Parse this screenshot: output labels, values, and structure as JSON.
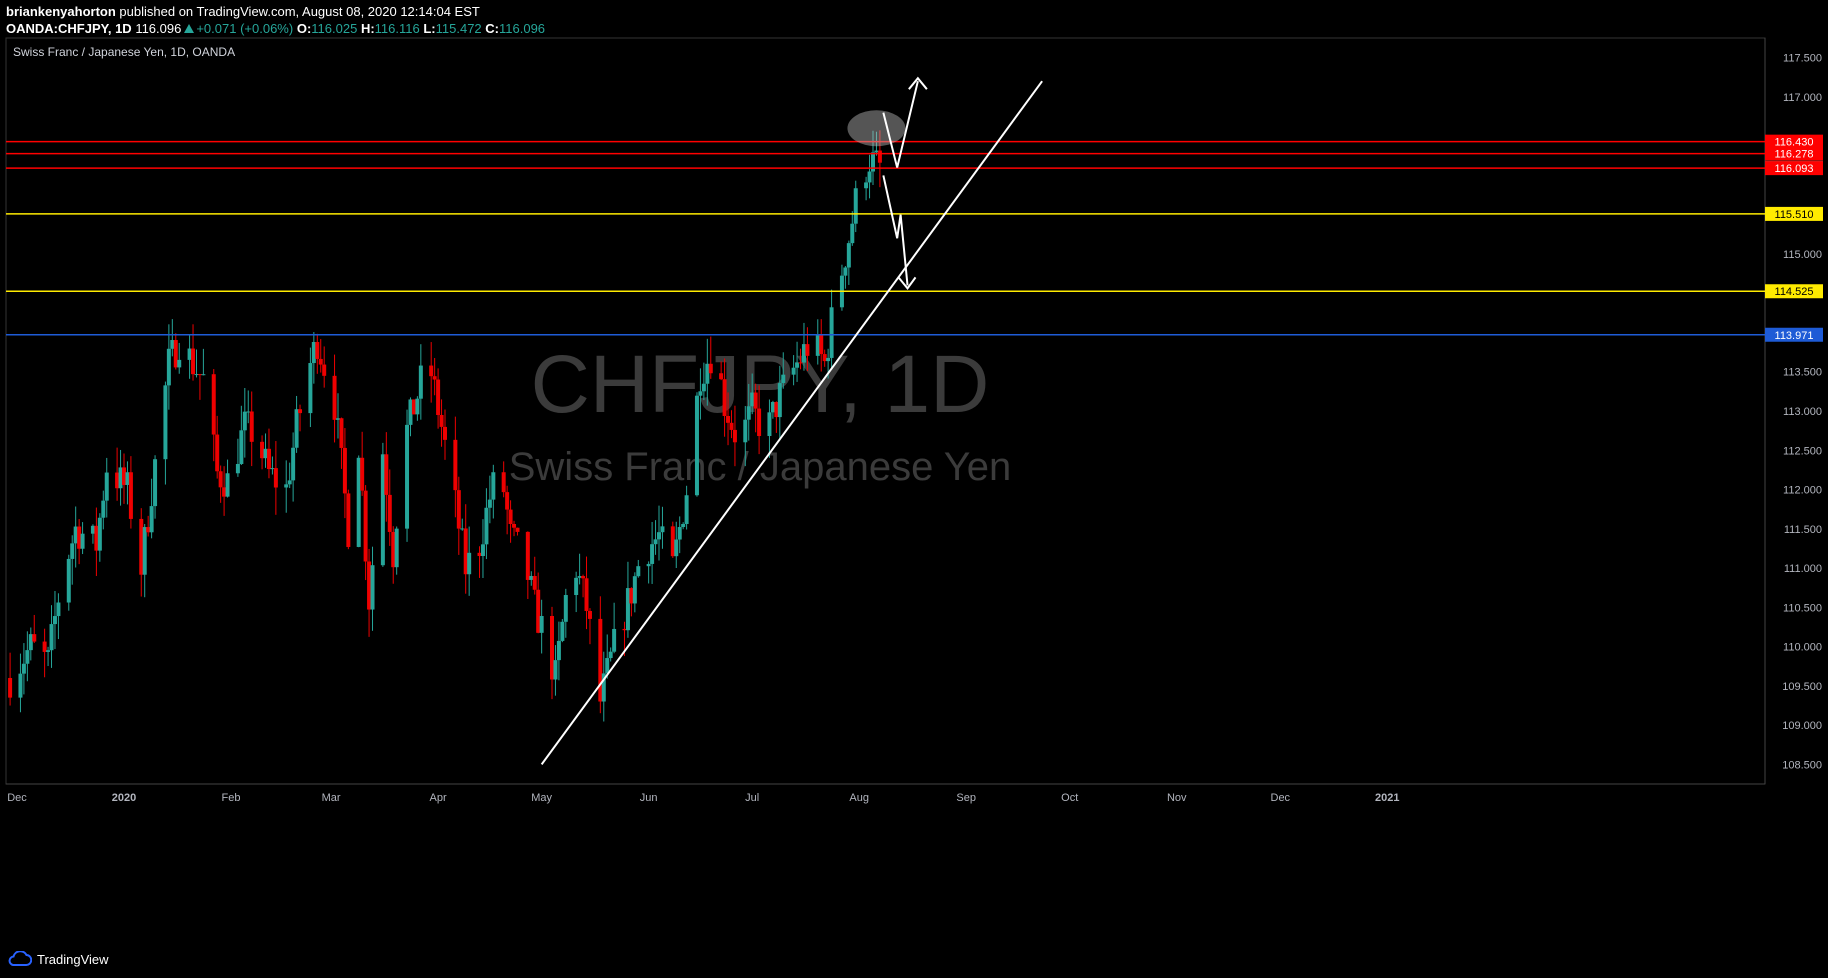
{
  "header": {
    "author": "briankenyahorton",
    "published_text": "published on TradingView.com, August 08, 2020 12:14:04 EST",
    "symbol": "OANDA:CHFJPY, 1D",
    "last": "116.096",
    "change": "+0.071 (+0.06%)",
    "open_label": "O:",
    "open": "116.025",
    "high_label": "H:",
    "high": "116.116",
    "low_label": "L:",
    "low": "115.472",
    "close_label": "C:",
    "close": "116.096"
  },
  "chart_title": "Swiss Franc / Japanese Yen, 1D, OANDA",
  "watermark": {
    "symbol": "CHFJPY, 1D",
    "name": "Swiss Franc / Japanese Yen"
  },
  "footer": {
    "logo_text": "TradingView"
  },
  "colors": {
    "up": "#26a69a",
    "down": "#ef0000",
    "resistance": "#ff0000",
    "support": "#ffeb00",
    "blue_level": "#1e5bd6",
    "trendline": "#ffffff",
    "background": "#000000",
    "axis_text": "#b2b5be"
  },
  "chart_data": {
    "type": "candlestick",
    "title": "Swiss Franc / Japanese Yen, 1D, OANDA",
    "symbol": "CHFJPY",
    "ylim": [
      108.25,
      117.75
    ],
    "y_ticks": [
      "108.500",
      "109.000",
      "109.500",
      "110.000",
      "110.500",
      "111.000",
      "111.500",
      "112.000",
      "112.500",
      "113.000",
      "113.500",
      "115.000",
      "117.000",
      "117.500"
    ],
    "x_ticks": [
      {
        "label": "Dec",
        "date": "2019-12-01"
      },
      {
        "label": "2020",
        "date": "2020-01-01"
      },
      {
        "label": "Feb",
        "date": "2020-02-01"
      },
      {
        "label": "Mar",
        "date": "2020-03-01"
      },
      {
        "label": "Apr",
        "date": "2020-04-01"
      },
      {
        "label": "May",
        "date": "2020-05-01"
      },
      {
        "label": "Jun",
        "date": "2020-06-01"
      },
      {
        "label": "Jul",
        "date": "2020-07-01"
      },
      {
        "label": "Aug",
        "date": "2020-08-01"
      },
      {
        "label": "Sep",
        "date": "2020-09-01"
      },
      {
        "label": "Oct",
        "date": "2020-10-01"
      },
      {
        "label": "Nov",
        "date": "2020-11-01"
      },
      {
        "label": "Dec",
        "date": "2020-12-01"
      },
      {
        "label": "2021",
        "date": "2021-01-01"
      }
    ],
    "price_levels": [
      {
        "value": 116.43,
        "label": "116.430",
        "kind": "resistance"
      },
      {
        "value": 116.278,
        "label": "116.278",
        "kind": "resistance"
      },
      {
        "value": 116.096,
        "label": "116.096",
        "kind": "last"
      },
      {
        "value": 116.093,
        "label": "116.093",
        "kind": "resistance"
      },
      {
        "value": 115.51,
        "label": "115.510",
        "kind": "support"
      },
      {
        "value": 114.525,
        "label": "114.525",
        "kind": "support"
      },
      {
        "value": 113.971,
        "label": "113.971",
        "kind": "blue_level"
      }
    ],
    "trendline": [
      {
        "date": "2020-05-01",
        "value": 108.5
      },
      {
        "date": "2020-09-23",
        "value": 117.2
      }
    ],
    "close_path": [
      [
        "2019-11-29",
        109.6
      ],
      [
        "2019-12-05",
        110.0
      ],
      [
        "2019-12-10",
        109.8
      ],
      [
        "2019-12-14",
        110.9
      ],
      [
        "2019-12-18",
        111.5
      ],
      [
        "2019-12-24",
        111.3
      ],
      [
        "2019-12-27",
        112.3
      ],
      [
        "2020-01-02",
        112.0
      ],
      [
        "2020-01-06",
        111.0
      ],
      [
        "2020-01-09",
        112.0
      ],
      [
        "2020-01-14",
        113.6
      ],
      [
        "2020-01-17",
        113.9
      ],
      [
        "2020-01-21",
        113.6
      ],
      [
        "2020-01-24",
        113.4
      ],
      [
        "2020-01-28",
        112.2
      ],
      [
        "2020-01-31",
        112.1
      ],
      [
        "2020-02-05",
        112.8
      ],
      [
        "2020-02-08",
        112.7
      ],
      [
        "2020-02-12",
        112.2
      ],
      [
        "2020-02-17",
        112.0
      ],
      [
        "2020-02-20",
        112.8
      ],
      [
        "2020-02-24",
        113.6
      ],
      [
        "2020-02-26",
        113.9
      ],
      [
        "2020-03-02",
        113.1
      ],
      [
        "2020-03-06",
        111.5
      ],
      [
        "2020-03-09",
        112.6
      ],
      [
        "2020-03-12",
        110.6
      ],
      [
        "2020-03-16",
        112.5
      ],
      [
        "2020-03-19",
        111.2
      ],
      [
        "2020-03-22",
        112.6
      ],
      [
        "2020-03-26",
        113.2
      ],
      [
        "2020-03-29",
        113.7
      ],
      [
        "2020-04-02",
        112.8
      ],
      [
        "2020-04-06",
        111.8
      ],
      [
        "2020-04-09",
        111.0
      ],
      [
        "2020-04-13",
        111.3
      ],
      [
        "2020-04-16",
        111.9
      ],
      [
        "2020-04-19",
        112.3
      ],
      [
        "2020-04-22",
        111.4
      ],
      [
        "2020-04-26",
        111.1
      ],
      [
        "2020-04-29",
        110.5
      ],
      [
        "2020-05-02",
        110.1
      ],
      [
        "2020-05-05",
        109.6
      ],
      [
        "2020-05-08",
        110.6
      ],
      [
        "2020-05-11",
        111.0
      ],
      [
        "2020-05-14",
        110.5
      ],
      [
        "2020-05-18",
        109.3
      ],
      [
        "2020-05-22",
        110.0
      ],
      [
        "2020-05-27",
        110.7
      ],
      [
        "2020-05-30",
        111.2
      ],
      [
        "2020-06-04",
        111.4
      ],
      [
        "2020-06-08",
        111.0
      ],
      [
        "2020-06-12",
        112.0
      ],
      [
        "2020-06-16",
        113.5
      ],
      [
        "2020-06-20",
        113.8
      ],
      [
        "2020-06-23",
        113.1
      ],
      [
        "2020-06-27",
        112.6
      ],
      [
        "2020-07-01",
        113.0
      ],
      [
        "2020-07-05",
        112.7
      ],
      [
        "2020-07-09",
        113.2
      ],
      [
        "2020-07-14",
        113.6
      ],
      [
        "2020-07-18",
        113.9
      ],
      [
        "2020-07-22",
        113.6
      ],
      [
        "2020-07-25",
        114.4
      ],
      [
        "2020-07-29",
        115.2
      ],
      [
        "2020-08-01",
        115.9
      ],
      [
        "2020-08-04",
        116.2
      ],
      [
        "2020-08-07",
        116.1
      ]
    ]
  }
}
